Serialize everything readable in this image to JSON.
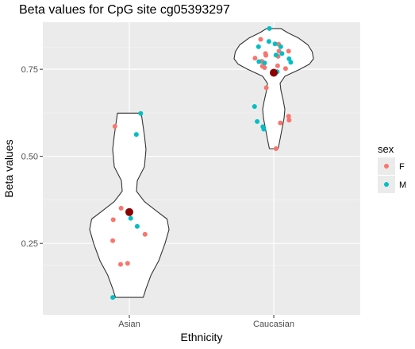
{
  "chart_data": {
    "type": "violin",
    "title": "Beta values for CpG site cg05393297",
    "xlabel": "Ethnicity",
    "ylabel": "Beta values",
    "categories": [
      "Asian",
      "Caucasian"
    ],
    "y_ticks": [
      0.25,
      0.5,
      0.75
    ],
    "y_tick_labels": [
      "0.25",
      "0.50",
      "0.75"
    ],
    "ylim": [
      0.045,
      0.885
    ],
    "grid": true,
    "legend": {
      "title": "sex",
      "position": "right",
      "entries": [
        {
          "label": "F",
          "color": "#F8766D"
        },
        {
          "label": "M",
          "color": "#00BFC4"
        }
      ]
    },
    "violins": [
      {
        "category": "Asian",
        "ymin": 0.095,
        "ymax": 0.624,
        "density_width": [
          [
            0.095,
            0.35
          ],
          [
            0.12,
            0.42
          ],
          [
            0.16,
            0.55
          ],
          [
            0.2,
            0.74
          ],
          [
            0.25,
            0.9
          ],
          [
            0.29,
            1.0
          ],
          [
            0.32,
            0.95
          ],
          [
            0.34,
            0.72
          ],
          [
            0.37,
            0.38
          ],
          [
            0.4,
            0.18
          ],
          [
            0.43,
            0.2
          ],
          [
            0.47,
            0.38
          ],
          [
            0.52,
            0.42
          ],
          [
            0.56,
            0.38
          ],
          [
            0.6,
            0.33
          ],
          [
            0.624,
            0.3
          ]
        ]
      },
      {
        "category": "Caucasian",
        "ymin": 0.522,
        "ymax": 0.867,
        "density_width": [
          [
            0.522,
            0.11
          ],
          [
            0.55,
            0.16
          ],
          [
            0.58,
            0.21
          ],
          [
            0.61,
            0.26
          ],
          [
            0.635,
            0.28
          ],
          [
            0.66,
            0.24
          ],
          [
            0.69,
            0.18
          ],
          [
            0.71,
            0.16
          ],
          [
            0.73,
            0.28
          ],
          [
            0.75,
            0.66
          ],
          [
            0.765,
            0.9
          ],
          [
            0.78,
            1.0
          ],
          [
            0.8,
            0.97
          ],
          [
            0.82,
            0.86
          ],
          [
            0.84,
            0.62
          ],
          [
            0.855,
            0.35
          ],
          [
            0.867,
            0.18
          ]
        ]
      }
    ],
    "means": [
      {
        "category": "Asian",
        "value": 0.34
      },
      {
        "category": "Caucasian",
        "value": 0.74
      }
    ],
    "points": [
      {
        "category": "Asian",
        "jitter": -0.33,
        "y": 0.586,
        "sex": "F"
      },
      {
        "category": "Asian",
        "jitter": -0.19,
        "y": 0.351,
        "sex": "F"
      },
      {
        "category": "Asian",
        "jitter": -0.37,
        "y": 0.318,
        "sex": "F"
      },
      {
        "category": "Asian",
        "jitter": -0.38,
        "y": 0.258,
        "sex": "F"
      },
      {
        "category": "Asian",
        "jitter": -0.2,
        "y": 0.19,
        "sex": "F"
      },
      {
        "category": "Asian",
        "jitter": -0.04,
        "y": 0.193,
        "sex": "F"
      },
      {
        "category": "Asian",
        "jitter": 0.36,
        "y": 0.276,
        "sex": "F"
      },
      {
        "category": "Asian",
        "jitter": 0.26,
        "y": 0.623,
        "sex": "M"
      },
      {
        "category": "Asian",
        "jitter": 0.16,
        "y": 0.563,
        "sex": "M"
      },
      {
        "category": "Asian",
        "jitter": 0.03,
        "y": 0.322,
        "sex": "M"
      },
      {
        "category": "Asian",
        "jitter": 0.18,
        "y": 0.299,
        "sex": "M"
      },
      {
        "category": "Asian",
        "jitter": -0.38,
        "y": 0.095,
        "sex": "M"
      },
      {
        "category": "Caucasian",
        "jitter": -0.3,
        "y": 0.836,
        "sex": "F"
      },
      {
        "category": "Caucasian",
        "jitter": -0.19,
        "y": 0.795,
        "sex": "F"
      },
      {
        "category": "Caucasian",
        "jitter": -0.18,
        "y": 0.79,
        "sex": "F"
      },
      {
        "category": "Caucasian",
        "jitter": -0.43,
        "y": 0.782,
        "sex": "F"
      },
      {
        "category": "Caucasian",
        "jitter": -0.27,
        "y": 0.773,
        "sex": "F"
      },
      {
        "category": "Caucasian",
        "jitter": -0.26,
        "y": 0.759,
        "sex": "F"
      },
      {
        "category": "Caucasian",
        "jitter": -0.21,
        "y": 0.755,
        "sex": "F"
      },
      {
        "category": "Caucasian",
        "jitter": -0.17,
        "y": 0.697,
        "sex": "F"
      },
      {
        "category": "Caucasian",
        "jitter": 0.11,
        "y": 0.822,
        "sex": "F"
      },
      {
        "category": "Caucasian",
        "jitter": 0.12,
        "y": 0.802,
        "sex": "F"
      },
      {
        "category": "Caucasian",
        "jitter": 0.1,
        "y": 0.787,
        "sex": "F"
      },
      {
        "category": "Caucasian",
        "jitter": 0.09,
        "y": 0.76,
        "sex": "F"
      },
      {
        "category": "Caucasian",
        "jitter": 0.34,
        "y": 0.802,
        "sex": "F"
      },
      {
        "category": "Caucasian",
        "jitter": 0.27,
        "y": 0.752,
        "sex": "F"
      },
      {
        "category": "Caucasian",
        "jitter": 0.34,
        "y": 0.615,
        "sex": "F"
      },
      {
        "category": "Caucasian",
        "jitter": 0.35,
        "y": 0.604,
        "sex": "F"
      },
      {
        "category": "Caucasian",
        "jitter": 0.15,
        "y": 0.596,
        "sex": "F"
      },
      {
        "category": "Caucasian",
        "jitter": 0.05,
        "y": 0.522,
        "sex": "F"
      },
      {
        "category": "Caucasian",
        "jitter": -0.1,
        "y": 0.867,
        "sex": "M"
      },
      {
        "category": "Caucasian",
        "jitter": 0.03,
        "y": 0.823,
        "sex": "M"
      },
      {
        "category": "Caucasian",
        "jitter": -0.35,
        "y": 0.815,
        "sex": "M"
      },
      {
        "category": "Caucasian",
        "jitter": -0.11,
        "y": 0.83,
        "sex": "M"
      },
      {
        "category": "Caucasian",
        "jitter": 0.16,
        "y": 0.815,
        "sex": "M"
      },
      {
        "category": "Caucasian",
        "jitter": 0.19,
        "y": 0.795,
        "sex": "M"
      },
      {
        "category": "Caucasian",
        "jitter": 0.05,
        "y": 0.791,
        "sex": "M"
      },
      {
        "category": "Caucasian",
        "jitter": 0.35,
        "y": 0.78,
        "sex": "M"
      },
      {
        "category": "Caucasian",
        "jitter": 0.39,
        "y": 0.77,
        "sex": "M"
      },
      {
        "category": "Caucasian",
        "jitter": -0.34,
        "y": 0.772,
        "sex": "M"
      },
      {
        "category": "Caucasian",
        "jitter": -0.21,
        "y": 0.768,
        "sex": "M"
      },
      {
        "category": "Caucasian",
        "jitter": 0.08,
        "y": 0.743,
        "sex": "M"
      },
      {
        "category": "Caucasian",
        "jitter": -0.44,
        "y": 0.643,
        "sex": "M"
      },
      {
        "category": "Caucasian",
        "jitter": -0.38,
        "y": 0.6,
        "sex": "M"
      },
      {
        "category": "Caucasian",
        "jitter": -0.25,
        "y": 0.585,
        "sex": "M"
      },
      {
        "category": "Caucasian",
        "jitter": -0.23,
        "y": 0.578,
        "sex": "M"
      }
    ]
  }
}
